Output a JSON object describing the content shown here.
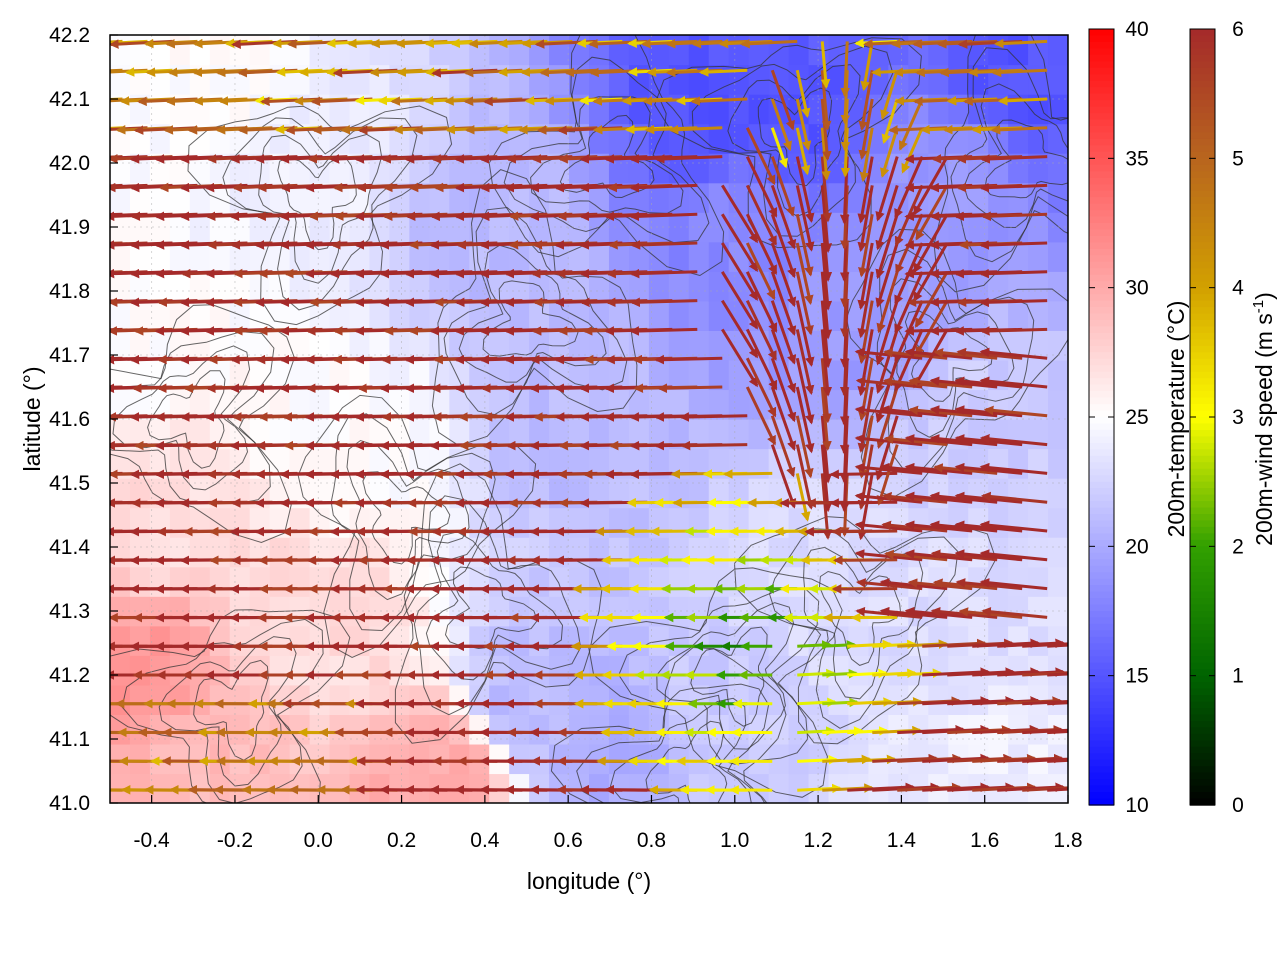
{
  "chart_data": {
    "type": "heatmap",
    "subtype": "temperature field with wind vectors and terrain contours",
    "xlabel": "longitude (°)",
    "ylabel": "latitude (°)",
    "xlim": [
      -0.5,
      1.8
    ],
    "ylim": [
      41.0,
      42.2
    ],
    "x_ticks": [
      -0.4,
      -0.2,
      0.0,
      0.2,
      0.4,
      0.6,
      0.8,
      1.0,
      1.2,
      1.4,
      1.6,
      1.8
    ],
    "x_tick_labels": [
      "-0.4",
      "-0.2",
      "0.0",
      "0.2",
      "0.4",
      "0.6",
      "0.8",
      "1.0",
      "1.2",
      "1.4",
      "1.6",
      "1.8"
    ],
    "y_ticks": [
      41.0,
      41.1,
      41.2,
      41.3,
      41.4,
      41.5,
      41.6,
      41.7,
      41.8,
      41.9,
      42.0,
      42.1,
      42.2
    ],
    "y_tick_labels": [
      "41.0",
      "41.1",
      "41.2",
      "41.3",
      "41.4",
      "41.5",
      "41.6",
      "41.7",
      "41.8",
      "41.9",
      "42.0",
      "42.1",
      "42.2"
    ],
    "grid": true,
    "colorbars": [
      {
        "name": "temperature",
        "label": "200m-temperature (°C)",
        "range": [
          10,
          40
        ],
        "ticks": [
          10,
          15,
          20,
          25,
          30,
          35,
          40
        ],
        "tick_labels": [
          "10",
          "15",
          "20",
          "25",
          "30",
          "35",
          "40"
        ],
        "colors": [
          "#0000ff",
          "#ffffff",
          "#ff0000"
        ],
        "placement": "right"
      },
      {
        "name": "wind",
        "label_main": "200m-wind speed (m s",
        "label_sup": "-1",
        "label_end": ")",
        "range": [
          0,
          6
        ],
        "ticks": [
          0,
          1,
          2,
          3,
          4,
          5,
          6
        ],
        "tick_labels": [
          "0",
          "1",
          "2",
          "3",
          "4",
          "5",
          "6"
        ],
        "colors": [
          "#000000",
          "#006400",
          "#32a000",
          "#ffff00",
          "#d2a000",
          "#b8651e",
          "#a52a2a"
        ],
        "placement": "far-right"
      }
    ],
    "temperature_field": {
      "description_values_degC": "warm (about 27-31) in the west and south-west, cool (about 15-19) in the north-east highlands and around lon 1.0-1.3 lat 41.8-42.2, near 22-24 elsewhere",
      "anchors": [
        {
          "lon": -0.45,
          "lat": 41.2,
          "t": 31
        },
        {
          "lon": -0.3,
          "lat": 41.05,
          "t": 29
        },
        {
          "lon": 0.3,
          "lat": 41.05,
          "t": 30
        },
        {
          "lon": -0.4,
          "lat": 41.45,
          "t": 27
        },
        {
          "lon": 0.0,
          "lat": 41.3,
          "t": 27
        },
        {
          "lon": -0.45,
          "lat": 41.7,
          "t": 25
        },
        {
          "lon": 0.1,
          "lat": 41.55,
          "t": 25
        },
        {
          "lon": 0.5,
          "lat": 41.15,
          "t": 21
        },
        {
          "lon": 0.7,
          "lat": 41.1,
          "t": 20
        },
        {
          "lon": 0.95,
          "lat": 41.15,
          "t": 22
        },
        {
          "lon": 0.6,
          "lat": 41.6,
          "t": 21
        },
        {
          "lon": 0.4,
          "lat": 41.9,
          "t": 21
        },
        {
          "lon": 0.95,
          "lat": 42.1,
          "t": 15
        },
        {
          "lon": 1.15,
          "lat": 42.05,
          "t": 15
        },
        {
          "lon": 1.05,
          "lat": 41.9,
          "t": 18
        },
        {
          "lon": 1.3,
          "lat": 41.8,
          "t": 19
        },
        {
          "lon": 1.5,
          "lat": 41.95,
          "t": 19
        },
        {
          "lon": 1.7,
          "lat": 42.15,
          "t": 15
        },
        {
          "lon": 1.6,
          "lat": 41.6,
          "t": 22
        },
        {
          "lon": 1.5,
          "lat": 41.3,
          "t": 23
        },
        {
          "lon": 1.6,
          "lat": 41.05,
          "t": 24
        },
        {
          "lon": 1.2,
          "lat": 41.35,
          "t": 23
        },
        {
          "lon": 0.0,
          "lat": 42.0,
          "t": 24
        },
        {
          "lon": -0.3,
          "lat": 42.15,
          "t": 25
        }
      ]
    },
    "wind_field": {
      "description": "strong (about 6 m/s) easterly-to-westward flow over most of the domain, converging southward near lon 1.2-1.3 lat 41.6-42.0, weak (about 1-3 m/s) and variable winds near lon 0.8-1.4 lat 41.0-41.5, moderate (about 3-5 m/s) near the top edge and south-west corner",
      "spacing_deg": {
        "lon": 0.05,
        "lat": 0.05
      }
    },
    "contours": {
      "description": "thin dark-grey terrain contour lines distributed across the domain, densest near lon 0.9-1.1 lat 41.0-41.4 and lon 1.0-1.3 lat 41.9-42.2"
    }
  }
}
